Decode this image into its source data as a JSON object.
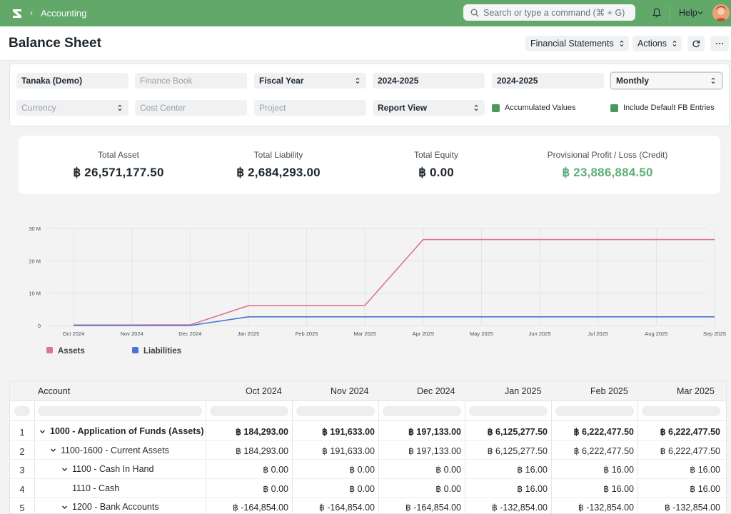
{
  "nav": {
    "breadcrumb": "Accounting",
    "search_placeholder": "Search or type a command (⌘ + G)",
    "help_label": "Help"
  },
  "header": {
    "title": "Balance Sheet",
    "financial_statements_label": "Financial Statements",
    "actions_label": "Actions"
  },
  "filters": {
    "company": "Tanaka (Demo)",
    "finance_book_placeholder": "Finance Book",
    "filter_based_on": "Fiscal Year",
    "from_fiscal_year": "2024-2025",
    "to_fiscal_year": "2024-2025",
    "periodicity": "Monthly",
    "currency_placeholder": "Currency",
    "cost_center_placeholder": "Cost Center",
    "project_placeholder": "Project",
    "view": "Report View",
    "accumulated_values": "Accumulated Values",
    "include_default_fb": "Include Default FB Entries"
  },
  "summary": {
    "total_asset_label": "Total Asset",
    "total_asset_value": "฿ 26,571,177.50",
    "total_liability_label": "Total Liability",
    "total_liability_value": "฿ 2,684,293.00",
    "total_equity_label": "Total Equity",
    "total_equity_value": "฿ 0.00",
    "profit_label": "Provisional Profit / Loss (Credit)",
    "profit_value": "฿ 23,886,884.50",
    "profit_color": "#5fae78"
  },
  "chart_data": {
    "type": "line",
    "x": [
      "Oct 2024",
      "Nov 2024",
      "Dec 2024",
      "Jan 2025",
      "Feb 2025",
      "Mar 2025",
      "Apr 2025",
      "May 2025",
      "Jun 2025",
      "Jul 2025",
      "Aug 2025",
      "Sep 2025"
    ],
    "y_ticks": [
      "0",
      "10 M",
      "20 M",
      "30 M"
    ],
    "ylim": [
      0,
      30000000
    ],
    "grid": true,
    "legend_position": "bottom-left",
    "series": [
      {
        "name": "Assets",
        "color": "#e07392",
        "values": [
          184293,
          191633,
          197133,
          6125277.5,
          6222477.5,
          6222477.5,
          26571177.5,
          26571177.5,
          26571177.5,
          26571177.5,
          26571177.5,
          26571177.5
        ]
      },
      {
        "name": "Liabilities",
        "color": "#4a74d0",
        "values": [
          0,
          0,
          0,
          2684293,
          2684293,
          2684293,
          2684293,
          2684293,
          2684293,
          2684293,
          2684293,
          2684293
        ]
      }
    ]
  },
  "table": {
    "account_header": "Account",
    "columns": [
      "Oct 2024",
      "Nov 2024",
      "Dec 2024",
      "Jan 2025",
      "Feb 2025",
      "Mar 2025"
    ],
    "rows": [
      {
        "num": "1",
        "account": "1000 - Application of Funds (Assets)",
        "bold": true,
        "values": [
          "฿ 184,293.00",
          "฿ 191,633.00",
          "฿ 197,133.00",
          "฿ 6,125,277.50",
          "฿ 6,222,477.50",
          "฿ 6,222,477.50"
        ]
      },
      {
        "num": "2",
        "account": "1100-1600 - Current Assets",
        "bold": false,
        "values": [
          "฿ 184,293.00",
          "฿ 191,633.00",
          "฿ 197,133.00",
          "฿ 6,125,277.50",
          "฿ 6,222,477.50",
          "฿ 6,222,477.50"
        ]
      },
      {
        "num": "3",
        "account": "1100 - Cash In Hand",
        "bold": false,
        "values": [
          "฿ 0.00",
          "฿ 0.00",
          "฿ 0.00",
          "฿ 16.00",
          "฿ 16.00",
          "฿ 16.00"
        ]
      },
      {
        "num": "4",
        "account": "1110 - Cash",
        "bold": false,
        "values": [
          "฿ 0.00",
          "฿ 0.00",
          "฿ 0.00",
          "฿ 16.00",
          "฿ 16.00",
          "฿ 16.00"
        ]
      },
      {
        "num": "5",
        "account": "1200 - Bank Accounts",
        "bold": false,
        "values": [
          "฿ -164,854.00",
          "฿ -164,854.00",
          "฿ -164,854.00",
          "฿ -132,854.00",
          "฿ -132,854.00",
          "฿ -132,854.00"
        ]
      }
    ]
  }
}
